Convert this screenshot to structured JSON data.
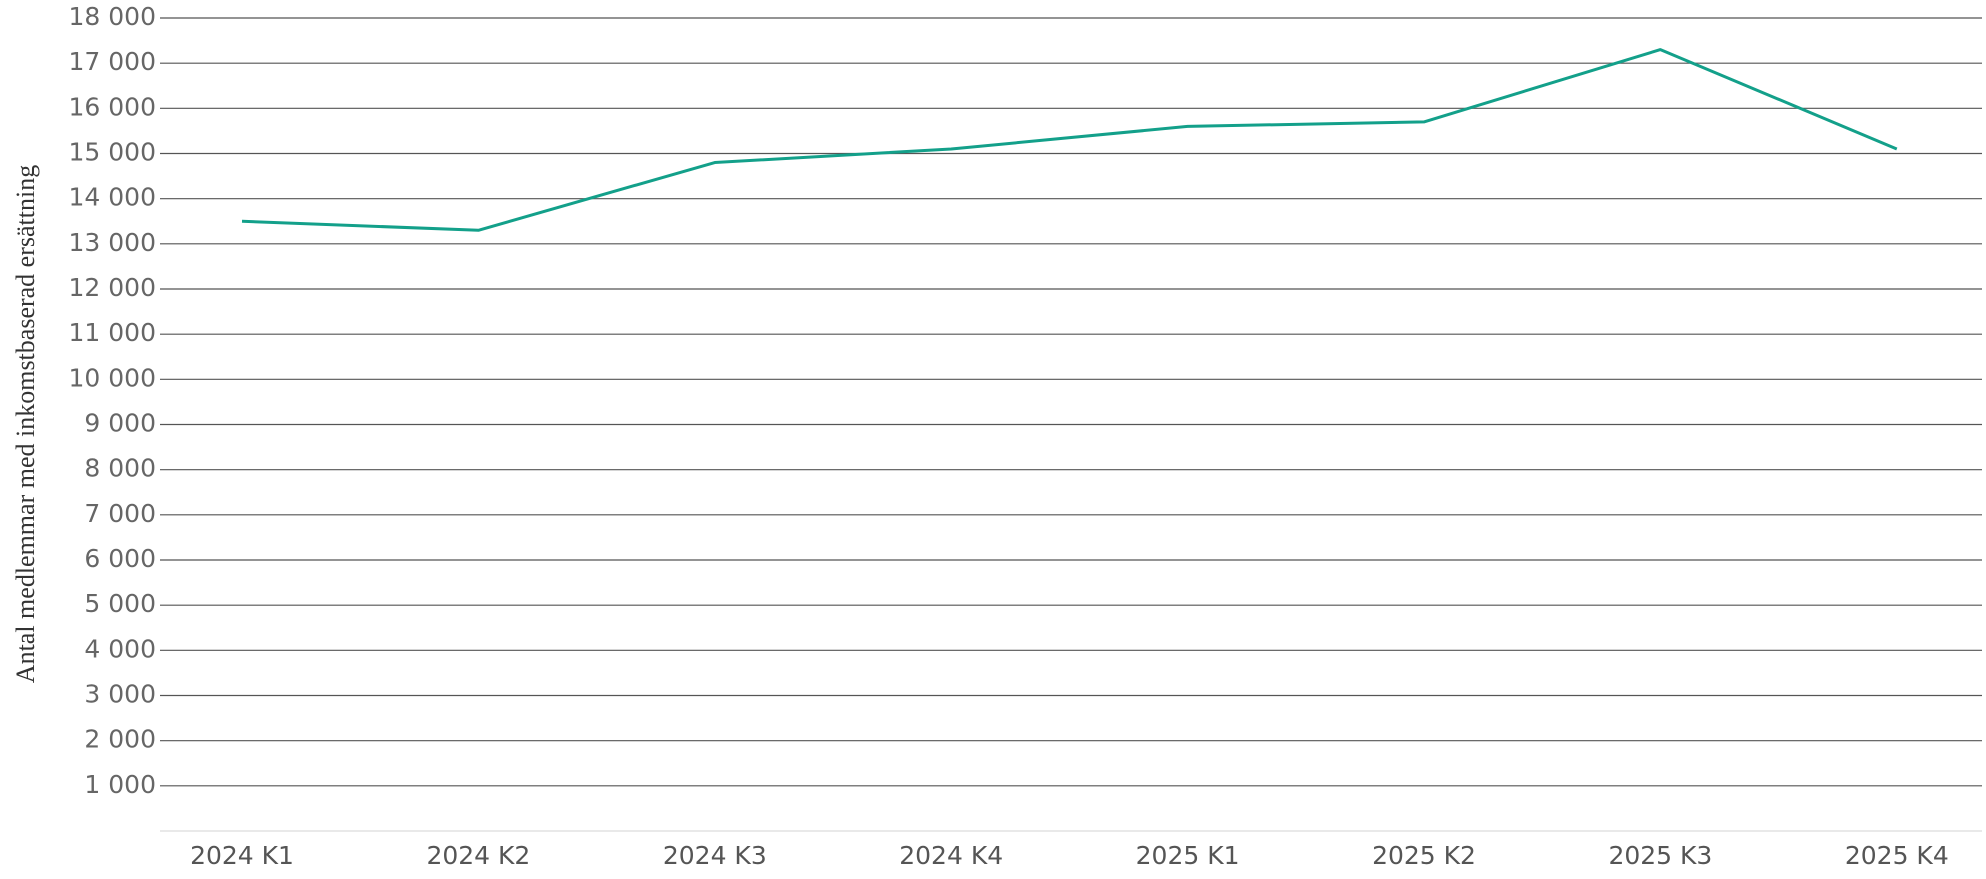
{
  "chart_data": {
    "type": "line",
    "y_label": "Antal medlemmar med inkomstbaserad ersättning",
    "categories": [
      "2024 K1",
      "2024 K2",
      "2024 K3",
      "2024 K4",
      "2025 K1",
      "2025 K2",
      "2025 K3",
      "2025 K4"
    ],
    "series": [
      {
        "color": "#13a08a",
        "values": [
          13500,
          13300,
          14800,
          15100,
          15600,
          15700,
          17300,
          15100
        ]
      }
    ],
    "ylim": [
      0,
      18000
    ],
    "yticks": [
      {
        "value": 1000,
        "label": "1 000"
      },
      {
        "value": 2000,
        "label": "2 000"
      },
      {
        "value": 3000,
        "label": "3 000"
      },
      {
        "value": 4000,
        "label": "4 000"
      },
      {
        "value": 5000,
        "label": "5 000"
      },
      {
        "value": 6000,
        "label": "6 000"
      },
      {
        "value": 7000,
        "label": "7 000"
      },
      {
        "value": 8000,
        "label": "8 000"
      },
      {
        "value": 9000,
        "label": "9 000"
      },
      {
        "value": 10000,
        "label": "10 000"
      },
      {
        "value": 11000,
        "label": "11 000"
      },
      {
        "value": 12000,
        "label": "12 000"
      },
      {
        "value": 13000,
        "label": "13 000"
      },
      {
        "value": 14000,
        "label": "14 000"
      },
      {
        "value": 15000,
        "label": "15 000"
      },
      {
        "value": 16000,
        "label": "16 000"
      },
      {
        "value": 17000,
        "label": "17 000"
      },
      {
        "value": 18000,
        "label": "18 000"
      }
    ],
    "grid": true
  }
}
